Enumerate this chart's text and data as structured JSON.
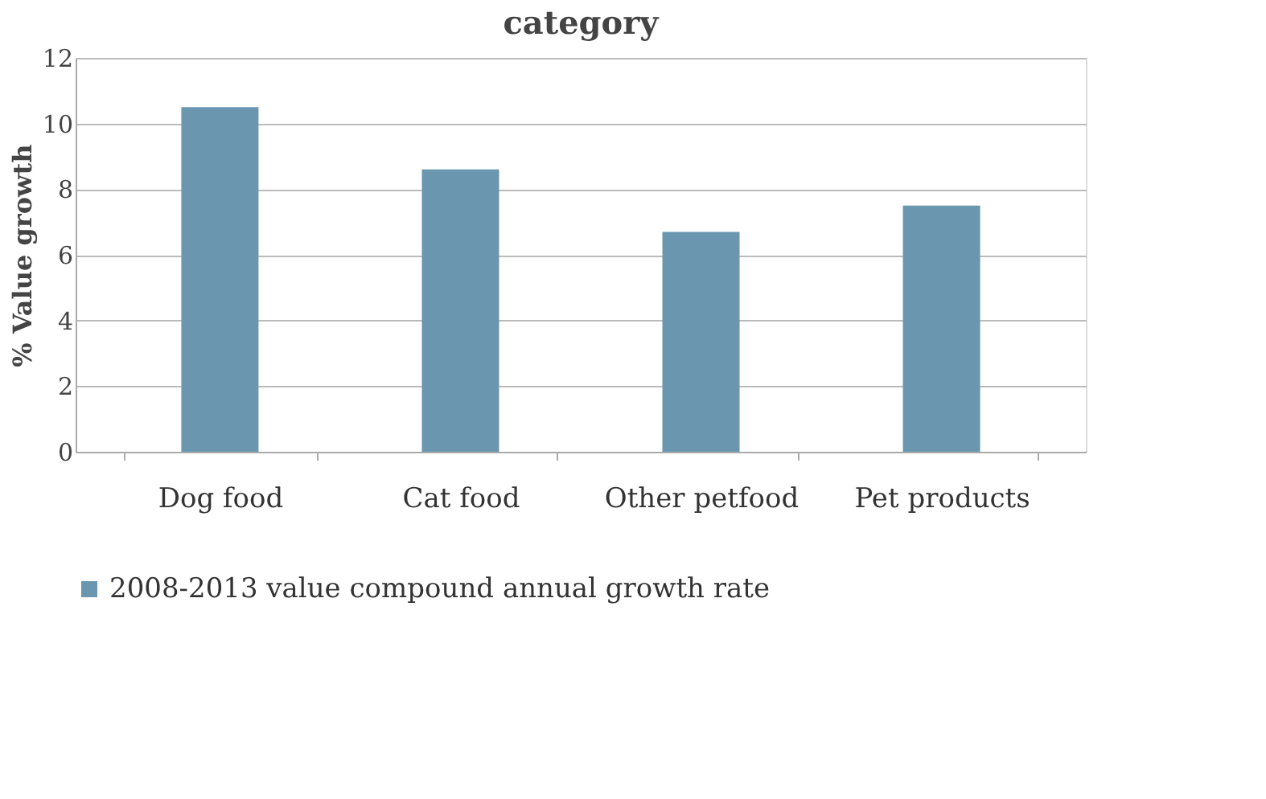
{
  "chart_data": {
    "type": "bar",
    "title": "category",
    "ylabel": "% Value growth",
    "categories": [
      "Dog food",
      "Cat food",
      "Other petfood",
      "Pet products"
    ],
    "series": [
      {
        "name": "2008-2013 value compound annual growth rate",
        "color": "#6a96b0",
        "values": [
          10.5,
          8.6,
          6.7,
          7.5
        ]
      }
    ],
    "ylim": [
      0,
      12
    ],
    "yticks": [
      0,
      2,
      4,
      6,
      8,
      10,
      12
    ],
    "grid": "y",
    "legend": "bottom"
  }
}
